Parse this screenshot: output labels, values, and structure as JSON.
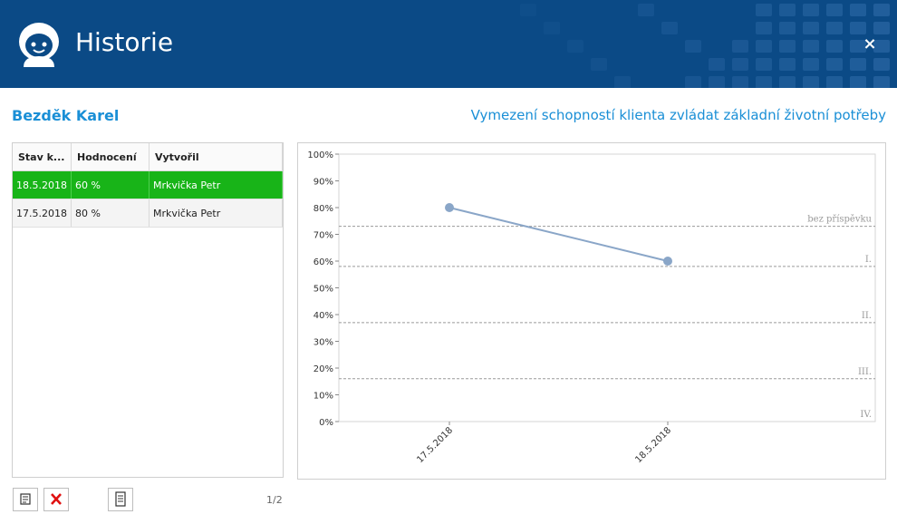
{
  "window": {
    "title": "Historie",
    "close_label": "×"
  },
  "client": {
    "name": "Bezděk Karel"
  },
  "section": {
    "title": "Vymezení schopností klienta zvládat základní životní potřeby"
  },
  "grid": {
    "columns": [
      "Stav k...",
      "Hodnocení",
      "Vytvořil"
    ],
    "rows": [
      {
        "date": "18.5.2018",
        "rating": "60 %",
        "author": "Mrkvička Petr",
        "selected": true
      },
      {
        "date": "17.5.2018",
        "rating": "80 %",
        "author": "Mrkvička Petr",
        "selected": false
      }
    ]
  },
  "pager": {
    "text": "1/2"
  },
  "icons": {
    "edit": "edit-icon",
    "delete": "delete-icon",
    "report": "document-icon"
  },
  "colors": {
    "header": "#0b4a86",
    "accent": "#1a8fd6",
    "selected_row": "#18b418",
    "series": "#8aa6c8"
  },
  "chart_data": {
    "type": "line",
    "categories": [
      "17.5.2018",
      "18.5.2018"
    ],
    "series": [
      {
        "values": [
          80,
          60
        ]
      }
    ],
    "ylim": [
      0,
      100
    ],
    "yticks": [
      "0%",
      "10%",
      "20%",
      "30%",
      "40%",
      "50%",
      "60%",
      "70%",
      "80%",
      "90%",
      "100%"
    ],
    "thresholds": [
      {
        "label": "bez příspěvku",
        "value": 73
      },
      {
        "label": "I.",
        "value": 58
      },
      {
        "label": "II.",
        "value": 37
      },
      {
        "label": "III.",
        "value": 16
      },
      {
        "label": "IV.",
        "value": 0
      }
    ],
    "grid": false
  }
}
